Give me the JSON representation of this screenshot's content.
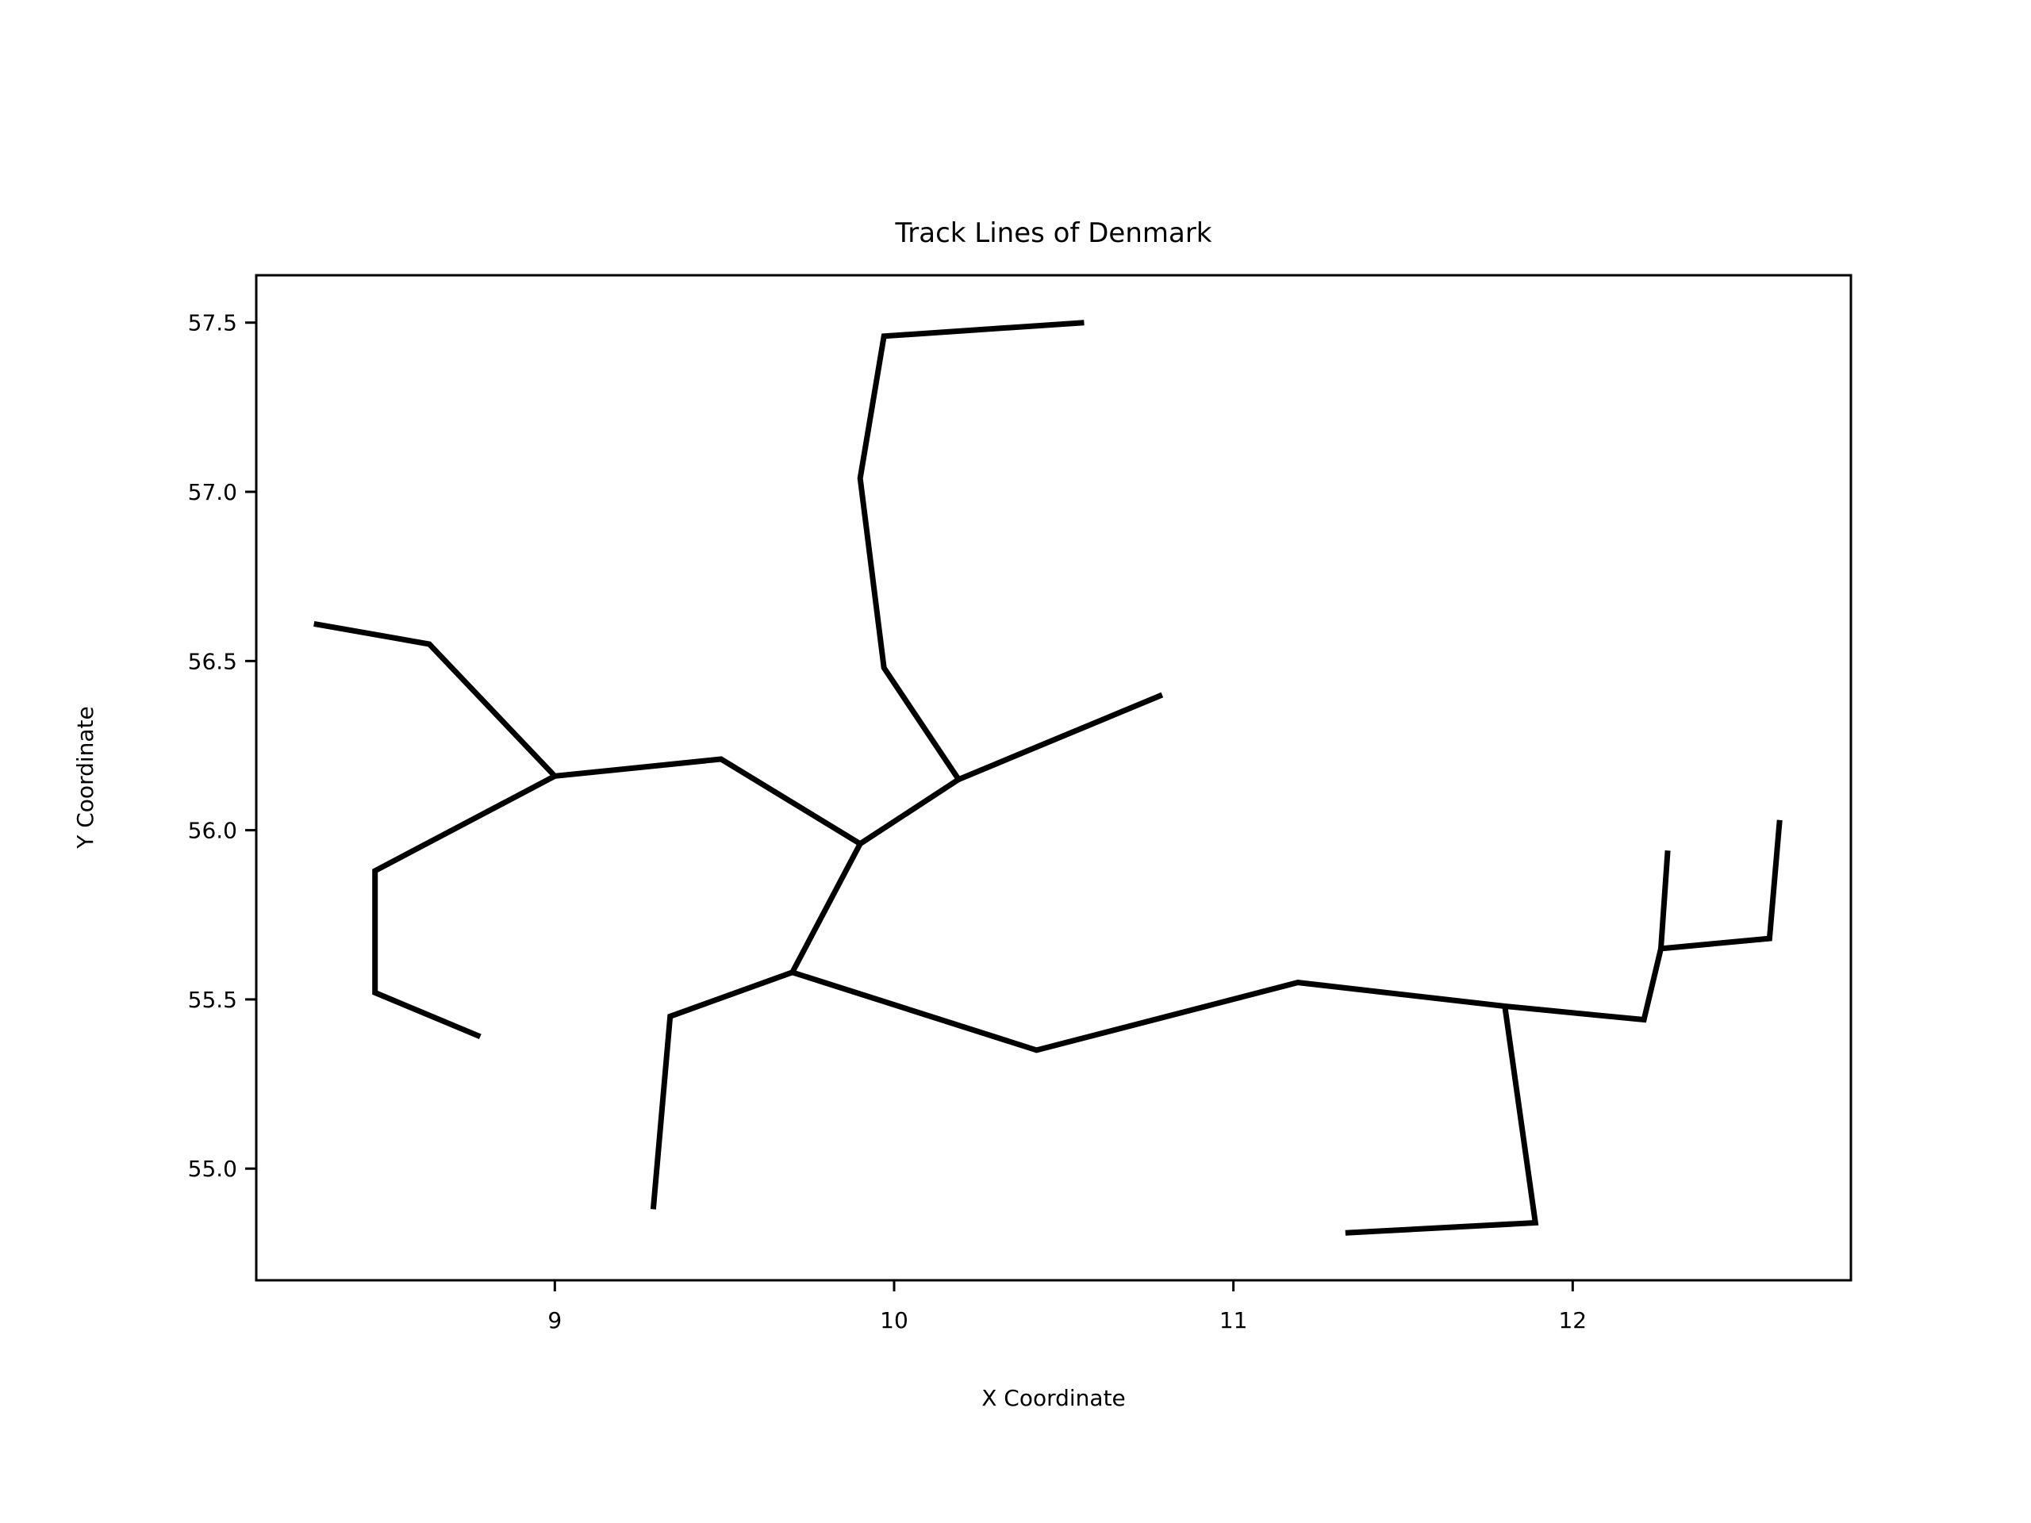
{
  "chart_data": {
    "type": "line",
    "title": "Track Lines of Denmark",
    "xlabel": "X Coordinate",
    "ylabel": "Y Coordinate",
    "xlim": [
      8.12,
      12.82
    ],
    "ylim": [
      54.67,
      57.64
    ],
    "xticks": [
      9,
      10,
      11,
      12
    ],
    "yticks": [
      55.0,
      55.5,
      56.0,
      56.5,
      57.0,
      57.5
    ],
    "grid": false,
    "line_color": "#000000",
    "series": [
      {
        "x": [
          8.29,
          8.63,
          9.0,
          9.49,
          9.9,
          10.19,
          10.79
        ],
        "y": [
          56.61,
          56.55,
          56.16,
          56.21,
          55.96,
          56.15,
          56.4
        ]
      },
      {
        "x": [
          10.19,
          9.97,
          9.9,
          9.97,
          10.56
        ],
        "y": [
          56.15,
          56.48,
          57.04,
          57.46,
          57.5
        ]
      },
      {
        "x": [
          9.0,
          8.47,
          8.47,
          8.78
        ],
        "y": [
          56.16,
          55.88,
          55.52,
          55.39
        ]
      },
      {
        "x": [
          9.9,
          9.7,
          10.42,
          11.19,
          11.8,
          12.21,
          12.26,
          12.58,
          12.61
        ],
        "y": [
          55.96,
          55.58,
          55.35,
          55.55,
          55.48,
          55.44,
          55.65,
          55.68,
          56.03
        ]
      },
      {
        "x": [
          9.7,
          9.34,
          9.29
        ],
        "y": [
          55.58,
          55.45,
          54.88
        ]
      },
      {
        "x": [
          11.8,
          11.89,
          11.33
        ],
        "y": [
          55.48,
          54.84,
          54.81
        ]
      },
      {
        "x": [
          12.26,
          12.28
        ],
        "y": [
          55.65,
          55.94
        ]
      }
    ]
  }
}
